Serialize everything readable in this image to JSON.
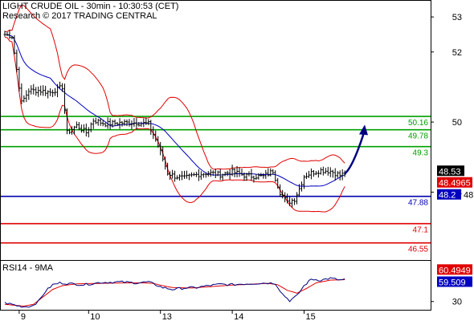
{
  "header": {
    "title": "LIGHT CRUDE OIL - 30min - 10:30:53 (CET)",
    "subtitle": "Research © 2017 TRADING CENTRAL"
  },
  "chart_data": [
    {
      "type": "candlestick",
      "ylim": [
        46.2,
        53.3
      ],
      "y_ticks": [
        "53",
        "52",
        "50",
        "48"
      ],
      "y_tick_values": [
        53,
        52,
        50,
        48
      ],
      "x_ticks": [
        "9",
        "10",
        "13",
        "14",
        "15"
      ],
      "x_tick_values": [
        6,
        35,
        65,
        95,
        125
      ],
      "n_bars": 145,
      "price_path": [
        [
          0,
          52.5
        ],
        [
          3,
          52.45
        ],
        [
          5,
          51.5
        ],
        [
          7,
          50.55
        ],
        [
          10,
          50.9
        ],
        [
          14,
          50.9
        ],
        [
          19,
          50.85
        ],
        [
          24,
          51.0
        ],
        [
          26,
          49.7
        ],
        [
          30,
          49.9
        ],
        [
          34,
          49.7
        ],
        [
          37,
          50.05
        ],
        [
          42,
          49.95
        ],
        [
          48,
          49.98
        ],
        [
          55,
          49.98
        ],
        [
          60,
          49.95
        ],
        [
          63,
          49.5
        ],
        [
          65,
          49.15
        ],
        [
          68,
          48.55
        ],
        [
          71,
          48.45
        ],
        [
          75,
          48.4
        ],
        [
          80,
          48.5
        ],
        [
          85,
          48.55
        ],
        [
          90,
          48.5
        ],
        [
          95,
          48.58
        ],
        [
          100,
          48.48
        ],
        [
          104,
          48.45
        ],
        [
          108,
          48.45
        ],
        [
          112,
          48.6
        ],
        [
          115,
          48.0
        ],
        [
          118,
          47.7
        ],
        [
          121,
          47.8
        ],
        [
          123,
          48.1
        ],
        [
          125,
          48.45
        ],
        [
          128,
          48.55
        ],
        [
          132,
          48.62
        ],
        [
          136,
          48.6
        ],
        [
          140,
          48.48
        ],
        [
          142,
          48.53
        ]
      ],
      "levels": [
        {
          "value": 50.16,
          "label": "50.16",
          "color": "#00a000"
        },
        {
          "value": 49.78,
          "label": "49.78",
          "color": "#00a000"
        },
        {
          "value": 49.3,
          "label": "49.3",
          "color": "#00a000"
        },
        {
          "value": 47.88,
          "label": "47.88",
          "color": "#0000b0"
        },
        {
          "value": 47.1,
          "label": "47.1",
          "color": "#e00000"
        },
        {
          "value": 46.55,
          "label": "46.55",
          "color": "#e00000"
        }
      ],
      "badges": [
        {
          "value": 48.53,
          "label": "48.53",
          "color": "#000000"
        },
        {
          "value": 48.4965,
          "label": "48.4965",
          "color": "#e00000"
        },
        {
          "value": 48.2,
          "label": "48.2",
          "color": "#0000c0"
        }
      ],
      "arrow": {
        "from": [
          142,
          48.53
        ],
        "to": [
          150,
          49.88
        ],
        "color": "#000080"
      },
      "bollinger_color": "#e00000",
      "ma_color": "#0000c0"
    },
    {
      "type": "line",
      "title": "RSI14 - 9MA",
      "ylim": [
        22,
        72
      ],
      "y_ticks": [
        "30"
      ],
      "y_tick_values": [
        30
      ],
      "path": [
        [
          0,
          28.5
        ],
        [
          3,
          27
        ],
        [
          6,
          25
        ],
        [
          8,
          24.5
        ],
        [
          11,
          25
        ],
        [
          14,
          30
        ],
        [
          17,
          41
        ],
        [
          20,
          48
        ],
        [
          23,
          50
        ],
        [
          28,
          49
        ],
        [
          33,
          48
        ],
        [
          40,
          50.5
        ],
        [
          48,
          51
        ],
        [
          55,
          50
        ],
        [
          60,
          51
        ],
        [
          63,
          48
        ],
        [
          66,
          45
        ],
        [
          70,
          43
        ],
        [
          75,
          44.5
        ],
        [
          80,
          45
        ],
        [
          85,
          47
        ],
        [
          90,
          48.5
        ],
        [
          95,
          48
        ],
        [
          100,
          49
        ],
        [
          105,
          49.5
        ],
        [
          110,
          50
        ],
        [
          113,
          49.5
        ],
        [
          116,
          38
        ],
        [
          119,
          31
        ],
        [
          122,
          36
        ],
        [
          125,
          47
        ],
        [
          128,
          54
        ],
        [
          132,
          53
        ],
        [
          136,
          55
        ],
        [
          140,
          53
        ],
        [
          143,
          54
        ]
      ],
      "ma_path": [
        [
          0,
          27
        ],
        [
          4,
          26
        ],
        [
          8,
          25
        ],
        [
          12,
          27
        ],
        [
          16,
          35
        ],
        [
          20,
          43
        ],
        [
          24,
          47
        ],
        [
          30,
          49
        ],
        [
          40,
          49.5
        ],
        [
          50,
          50
        ],
        [
          58,
          50
        ],
        [
          62,
          49.5
        ],
        [
          66,
          47
        ],
        [
          70,
          45
        ],
        [
          78,
          44.5
        ],
        [
          86,
          46
        ],
        [
          94,
          47.5
        ],
        [
          102,
          48.5
        ],
        [
          110,
          49.5
        ],
        [
          114,
          48
        ],
        [
          118,
          42
        ],
        [
          122,
          39
        ],
        [
          126,
          44
        ],
        [
          130,
          50
        ],
        [
          136,
          53
        ],
        [
          143,
          53.5
        ]
      ],
      "badges": [
        {
          "value": 60.4949,
          "label": "60.4949",
          "color": "#e00000"
        },
        {
          "value": 59.509,
          "label": "59.509",
          "color": "#0000c0"
        }
      ],
      "line_color": "#000080",
      "ma_color": "#e00000"
    }
  ]
}
